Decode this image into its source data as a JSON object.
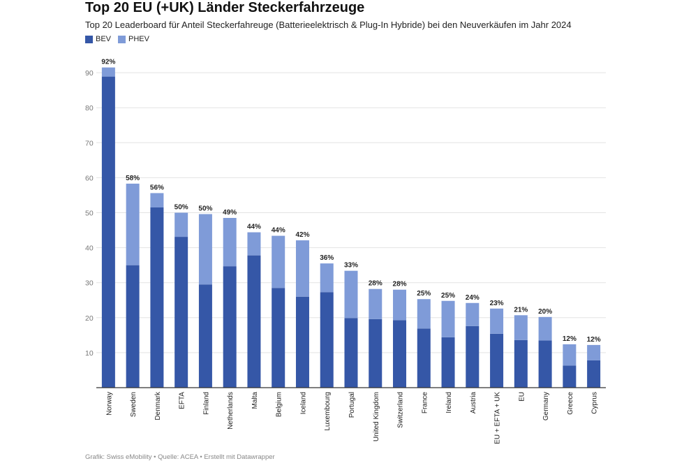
{
  "chart_data": {
    "type": "bar",
    "stacked": true,
    "title": "Top 20 EU (+UK) Länder Steckerfahrzeuge",
    "subtitle": "Top 20 Leaderboard für Anteil Steckerfahreuge (Batterieelektrisch & Plug-In Hybride) bei den Neuverkäufen im Jahr 2024",
    "categories": [
      "Norway",
      "Sweden",
      "Denmark",
      "EFTA",
      "Finland",
      "Netherlands",
      "Malta",
      "Belgium",
      "Iceland",
      "Luxembourg",
      "Portugal",
      "United Kingdom",
      "Switzerland",
      "France",
      "Ireland",
      "Austria",
      "EU + EFTA + UK",
      "EU",
      "Germany",
      "Greece",
      "Cyprus"
    ],
    "series": [
      {
        "name": "BEV",
        "color": "#3557a7",
        "values": [
          88.9,
          35.0,
          51.5,
          43.1,
          29.5,
          34.7,
          37.8,
          28.5,
          26.0,
          27.3,
          19.9,
          19.6,
          19.3,
          16.9,
          14.4,
          17.6,
          15.4,
          13.6,
          13.5,
          6.3,
          7.8
        ]
      },
      {
        "name": "PHEV",
        "color": "#7f9bd8",
        "values": [
          2.6,
          23.3,
          4.1,
          6.9,
          20.1,
          13.8,
          6.6,
          14.9,
          16.1,
          8.2,
          13.5,
          8.6,
          8.7,
          8.4,
          10.4,
          6.6,
          7.2,
          7.1,
          6.7,
          6.1,
          4.4
        ]
      }
    ],
    "totals_labels": [
      "92%",
      "58%",
      "56%",
      "50%",
      "50%",
      "49%",
      "44%",
      "44%",
      "42%",
      "36%",
      "33%",
      "28%",
      "28%",
      "25%",
      "25%",
      "24%",
      "23%",
      "21%",
      "20%",
      "12%",
      "12%"
    ],
    "yticks": [
      10,
      20,
      30,
      40,
      50,
      60,
      70,
      80,
      90
    ],
    "ylim": [
      0,
      95
    ],
    "grid": true,
    "legend_position": "top-left"
  },
  "footer": "Grafik: Swiss eMobility • Quelle: ACEA • Erstellt mit Datawrapper"
}
